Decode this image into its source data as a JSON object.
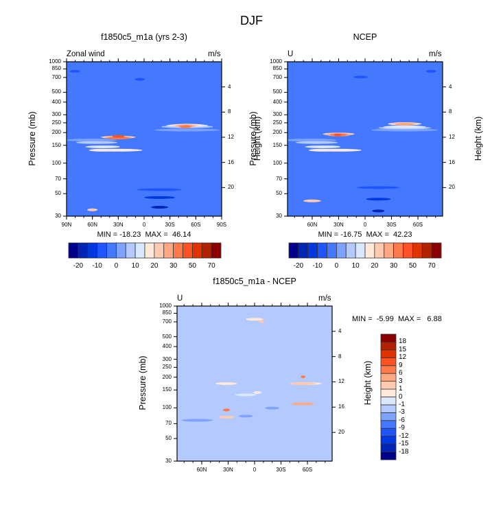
{
  "figure_title": "DJF",
  "colors": {
    "abs_palette": [
      "#00008b",
      "#0024b3",
      "#0038e0",
      "#1f55ff",
      "#4479ff",
      "#7da2ff",
      "#b4caff",
      "#d9e8ff",
      "#ffe9da",
      "#ffcab0",
      "#ffa882",
      "#ff7a4a",
      "#ff5224",
      "#e03300",
      "#b32200",
      "#8b0000"
    ],
    "diff_palette": [
      "#00008b",
      "#0024b3",
      "#0038e0",
      "#1f55ff",
      "#4479ff",
      "#7da2ff",
      "#b4caff",
      "#d9e8ff",
      "#ffe9da",
      "#ffcab0",
      "#ffa882",
      "#ff7a4a",
      "#ff5224",
      "#e03300",
      "#b32200",
      "#8b0000"
    ]
  },
  "chart_data": [
    {
      "type": "heatmap",
      "id": "model",
      "title": "f1850c5_m1a (yrs 2-3)",
      "left_label": "Zonal wind",
      "right_label": "m/s",
      "ylabel": "Pressure (mb)",
      "y2label": "Height (km)",
      "xlim": [
        90,
        -90
      ],
      "xticks": [
        90,
        60,
        30,
        0,
        -30,
        -60,
        -90
      ],
      "xtick_labels": [
        "90N",
        "60N",
        "30N",
        "0",
        "30S",
        "60S",
        "90S"
      ],
      "yticks": [
        30,
        50,
        70,
        100,
        150,
        200,
        250,
        300,
        400,
        500,
        700,
        850,
        1000
      ],
      "ytick_labels": [
        "30",
        "50",
        "70",
        "100",
        "150",
        "200",
        "250",
        "300",
        "400",
        "500",
        "700",
        "850",
        "1000"
      ],
      "ylim": [
        1000,
        30
      ],
      "y2ticks": [
        4,
        8,
        12,
        16,
        20
      ],
      "y2tick_labels": [
        "4",
        "8",
        "12",
        "16",
        "20"
      ],
      "min": -18.23,
      "max": 46.14,
      "min_max_text": "MIN = -18.23  MAX =  46.14",
      "levels": [
        "-20",
        "-10",
        "0",
        "10",
        "20",
        "30",
        "50",
        "70"
      ],
      "background_level": 4,
      "features": [
        {
          "lat": 62,
          "p": 30,
          "wlat": 30,
          "hp": [
            30,
            950
          ],
          "level": 5
        },
        {
          "lat": 55,
          "p": 30,
          "wlat": 24,
          "hp": [
            30,
            850
          ],
          "level": 6
        },
        {
          "lat": 48,
          "p": 30,
          "wlat": 20,
          "hp": [
            30,
            700
          ],
          "level": 7
        },
        {
          "lat": 48,
          "p": 30,
          "wlat": 16,
          "hp": [
            30,
            600
          ],
          "level": 8
        },
        {
          "lat": 30,
          "p": 170,
          "wlat": 28,
          "hp": [
            30,
            600
          ],
          "level": 8
        },
        {
          "lat": 60,
          "p": 30,
          "wlat": 6,
          "hp": [
            30,
            40
          ],
          "level": 9
        },
        {
          "lat": 30,
          "p": 180,
          "wlat": 20,
          "hp": [
            65,
            500
          ],
          "level": 9
        },
        {
          "lat": 30,
          "p": 180,
          "wlat": 15,
          "hp": [
            80,
            400
          ],
          "level": 10
        },
        {
          "lat": 30,
          "p": 180,
          "wlat": 12,
          "hp": [
            95,
            330
          ],
          "level": 11
        },
        {
          "lat": 30,
          "p": 190,
          "wlat": 7,
          "hp": [
            120,
            280
          ],
          "level": 12
        },
        {
          "lat": -50,
          "p": 250,
          "wlat": 38,
          "hp": [
            45,
            1000
          ],
          "level": 5
        },
        {
          "lat": -50,
          "p": 250,
          "wlat": 30,
          "hp": [
            55,
            950
          ],
          "level": 6
        },
        {
          "lat": -50,
          "p": 250,
          "wlat": 24,
          "hp": [
            65,
            850
          ],
          "level": 7
        },
        {
          "lat": -50,
          "p": 250,
          "wlat": 19,
          "hp": [
            80,
            700
          ],
          "level": 8
        },
        {
          "lat": -48,
          "p": 240,
          "wlat": 15,
          "hp": [
            100,
            550
          ],
          "level": 9
        },
        {
          "lat": -48,
          "p": 230,
          "wlat": 11,
          "hp": [
            120,
            450
          ],
          "level": 10
        },
        {
          "lat": -48,
          "p": 220,
          "wlat": 7,
          "hp": [
            150,
            350
          ],
          "level": 11
        },
        {
          "lat": -18,
          "p": 30,
          "wlat": 26,
          "hp": [
            30,
            100
          ],
          "level": 3
        },
        {
          "lat": -18,
          "p": 30,
          "wlat": 18,
          "hp": [
            30,
            70
          ],
          "level": 2
        },
        {
          "lat": -18,
          "p": 30,
          "wlat": 10,
          "hp": [
            30,
            45
          ],
          "level": 1
        },
        {
          "lat": 5,
          "p": 850,
          "wlat": 6,
          "hp": [
            450,
            1000
          ],
          "level": 3
        },
        {
          "lat": 80,
          "p": 1000,
          "wlat": 6,
          "hp": [
            650,
            1000
          ],
          "level": 3
        }
      ]
    },
    {
      "type": "heatmap",
      "id": "ncep",
      "title": "NCEP",
      "left_label": "U",
      "right_label": "m/s",
      "ylabel": "Pressure (mb)",
      "y2label": "Height (km)",
      "xlim": [
        88,
        -88
      ],
      "xticks": [
        60,
        30,
        0,
        -30,
        -60
      ],
      "xtick_labels": [
        "60N",
        "30N",
        "0",
        "30S",
        "60S"
      ],
      "yticks": [
        30,
        50,
        70,
        100,
        150,
        200,
        250,
        300,
        400,
        500,
        700,
        850,
        1000
      ],
      "ytick_labels": [
        "30",
        "50",
        "70",
        "100",
        "150",
        "200",
        "250",
        "300",
        "400",
        "500",
        "700",
        "850",
        "1000"
      ],
      "ylim": [
        1000,
        30
      ],
      "y2ticks": [
        4,
        8,
        12,
        16,
        20
      ],
      "y2tick_labels": [
        "4",
        "8",
        "12",
        "16",
        "20"
      ],
      "min": -16.75,
      "max": 42.23,
      "min_max_text": "MIN = -16.75  MAX =  42.23",
      "levels": [
        "-20",
        "-10",
        "0",
        "10",
        "20",
        "30",
        "50",
        "70"
      ],
      "background_level": 4,
      "features": [
        {
          "lat": 62,
          "p": 30,
          "wlat": 30,
          "hp": [
            30,
            950
          ],
          "level": 5
        },
        {
          "lat": 55,
          "p": 30,
          "wlat": 24,
          "hp": [
            30,
            850
          ],
          "level": 6
        },
        {
          "lat": 48,
          "p": 30,
          "wlat": 20,
          "hp": [
            30,
            700
          ],
          "level": 7
        },
        {
          "lat": 48,
          "p": 30,
          "wlat": 16,
          "hp": [
            30,
            600
          ],
          "level": 8
        },
        {
          "lat": 30,
          "p": 180,
          "wlat": 26,
          "hp": [
            30,
            600
          ],
          "level": 8
        },
        {
          "lat": 60,
          "p": 30,
          "wlat": 10,
          "hp": [
            30,
            60
          ],
          "level": 9
        },
        {
          "lat": 30,
          "p": 190,
          "wlat": 18,
          "hp": [
            75,
            500
          ],
          "level": 9
        },
        {
          "lat": 30,
          "p": 190,
          "wlat": 13,
          "hp": [
            90,
            400
          ],
          "level": 10
        },
        {
          "lat": 30,
          "p": 200,
          "wlat": 10,
          "hp": [
            110,
            330
          ],
          "level": 11
        },
        {
          "lat": 31,
          "p": 200,
          "wlat": 4,
          "hp": [
            150,
            240
          ],
          "level": 12
        },
        {
          "lat": -45,
          "p": 230,
          "wlat": 38,
          "hp": [
            45,
            1000
          ],
          "level": 5
        },
        {
          "lat": -45,
          "p": 230,
          "wlat": 30,
          "hp": [
            55,
            900
          ],
          "level": 6
        },
        {
          "lat": -45,
          "p": 230,
          "wlat": 24,
          "hp": [
            65,
            800
          ],
          "level": 7
        },
        {
          "lat": -45,
          "p": 230,
          "wlat": 19,
          "hp": [
            85,
            700
          ],
          "level": 8
        },
        {
          "lat": -45,
          "p": 230,
          "wlat": 15,
          "hp": [
            110,
            550
          ],
          "level": 9
        },
        {
          "lat": -45,
          "p": 240,
          "wlat": 11,
          "hp": [
            140,
            420
          ],
          "level": 10
        },
        {
          "lat": -15,
          "p": 30,
          "wlat": 24,
          "hp": [
            30,
            110
          ],
          "level": 3
        },
        {
          "lat": -15,
          "p": 30,
          "wlat": 14,
          "hp": [
            30,
            65
          ],
          "level": 2
        },
        {
          "lat": -15,
          "p": 30,
          "wlat": 7,
          "hp": [
            30,
            38
          ],
          "level": 1
        },
        {
          "lat": 5,
          "p": 850,
          "wlat": 8,
          "hp": [
            500,
            1000
          ],
          "level": 3
        },
        {
          "lat": -75,
          "p": 900,
          "wlat": 6,
          "hp": [
            650,
            1000
          ],
          "level": 3
        }
      ]
    },
    {
      "type": "heatmap",
      "id": "diff",
      "title": "f1850c5_m1a - NCEP",
      "left_label": "U",
      "right_label": "m/s",
      "ylabel": "Pressure (mb)",
      "y2label": "Height (km)",
      "xlim": [
        88,
        -88
      ],
      "xticks": [
        60,
        30,
        0,
        -30,
        -60
      ],
      "xtick_labels": [
        "60N",
        "30N",
        "0",
        "30S",
        "60S"
      ],
      "yticks": [
        30,
        50,
        70,
        100,
        150,
        200,
        250,
        300,
        400,
        500,
        700,
        850,
        1000
      ],
      "ytick_labels": [
        "30",
        "50",
        "70",
        "100",
        "150",
        "200",
        "250",
        "300",
        "400",
        "500",
        "700",
        "850",
        "1000"
      ],
      "ylim": [
        1000,
        30
      ],
      "y2ticks": [
        4,
        8,
        12,
        16,
        20
      ],
      "y2tick_labels": [
        "4",
        "8",
        "12",
        "16",
        "20"
      ],
      "min": -5.99,
      "max": 6.88,
      "min_max_text": "MIN =  -5.99  MAX =   6.88",
      "levels": [
        "-18",
        "-15",
        "-12",
        "-9",
        "-6",
        "-3",
        "-1",
        "0",
        "1",
        "3",
        "6",
        "9",
        "12",
        "15",
        "18"
      ],
      "background_level": 6,
      "features": [
        {
          "lat": 65,
          "p": 30,
          "wlat": 18,
          "hp": [
            30,
            190
          ],
          "level": 5
        },
        {
          "lat": 32,
          "p": 30,
          "wlat": 12,
          "hp": [
            30,
            1000
          ],
          "level": 8
        },
        {
          "lat": 32,
          "p": 30,
          "wlat": 9,
          "hp": [
            30,
            220
          ],
          "level": 9
        },
        {
          "lat": 32,
          "p": 90,
          "wlat": 4,
          "hp": [
            65,
            140
          ],
          "level": 11
        },
        {
          "lat": 10,
          "p": 30,
          "wlat": 12,
          "hp": [
            30,
            600
          ],
          "level": 7
        },
        {
          "lat": 10,
          "p": 30,
          "wlat": 8,
          "hp": [
            30,
            230
          ],
          "level": 5
        },
        {
          "lat": -3,
          "p": 100,
          "wlat": 5,
          "hp": [
            80,
            250
          ],
          "level": 7
        },
        {
          "lat": -3,
          "p": 150,
          "wlat": 3,
          "hp": [
            100,
            200
          ],
          "level": 8
        },
        {
          "lat": -20,
          "p": 30,
          "wlat": 8,
          "hp": [
            30,
            330
          ],
          "level": 5
        },
        {
          "lat": 0,
          "p": 750,
          "wlat": 10,
          "hp": [
            550,
            1000
          ],
          "level": 8
        },
        {
          "lat": -8,
          "p": 700,
          "wlat": 3,
          "hp": [
            650,
            760
          ],
          "level": 9
        },
        {
          "lat": -58,
          "p": 30,
          "wlat": 18,
          "hp": [
            30,
            1000
          ],
          "level": 8
        },
        {
          "lat": -55,
          "p": 30,
          "wlat": 15,
          "hp": [
            30,
            1000
          ],
          "level": 9
        },
        {
          "lat": -55,
          "p": 30,
          "wlat": 13,
          "hp": [
            30,
            400
          ],
          "level": 10
        },
        {
          "lat": -55,
          "p": 200,
          "wlat": 2.5,
          "hp": [
            170,
            240
          ],
          "level": 11
        }
      ]
    }
  ]
}
